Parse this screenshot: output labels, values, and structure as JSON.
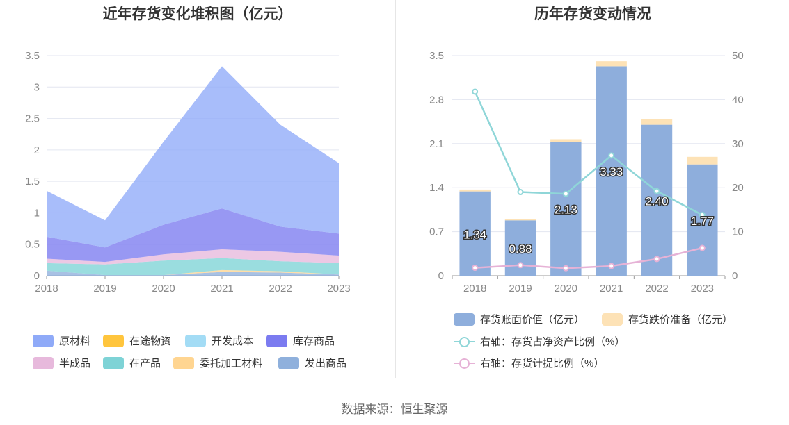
{
  "source_label": "数据来源：恒生聚源",
  "chart_data": [
    {
      "type": "area",
      "title": "近年存货变化堆积图（亿元）",
      "categories": [
        "2018",
        "2019",
        "2020",
        "2021",
        "2022",
        "2023"
      ],
      "y_ticks": [
        "0",
        "0.5",
        "1",
        "1.5",
        "2",
        "2.5",
        "3",
        "3.5"
      ],
      "ylim": [
        0,
        3.5
      ],
      "grid": true,
      "legend_position": "bottom",
      "series": [
        {
          "name": "发出商品",
          "color": "#8fb0dc",
          "values": [
            0.08,
            0.01,
            0.01,
            0.06,
            0.05,
            0.02
          ]
        },
        {
          "name": "委托加工材料",
          "color": "#ffd591",
          "values": [
            0.0,
            0.0,
            0.0,
            0.03,
            0.02,
            0.0
          ]
        },
        {
          "name": "在产品",
          "color": "#7ed3d6",
          "values": [
            0.12,
            0.17,
            0.23,
            0.19,
            0.16,
            0.18
          ]
        },
        {
          "name": "半成品",
          "color": "#e7b9dc",
          "values": [
            0.07,
            0.04,
            0.1,
            0.14,
            0.15,
            0.12
          ]
        },
        {
          "name": "库存商品",
          "color": "#7b7bf0",
          "values": [
            0.35,
            0.23,
            0.47,
            0.65,
            0.4,
            0.35
          ]
        },
        {
          "name": "开发成本",
          "color": "#a3dcf5",
          "values": [
            0,
            0,
            0,
            0,
            0,
            0
          ]
        },
        {
          "name": "在途物资",
          "color": "#ffc53d",
          "values": [
            0,
            0,
            0,
            0,
            0,
            0
          ]
        },
        {
          "name": "原材料",
          "color": "#8faaf8",
          "values": [
            0.73,
            0.43,
            1.32,
            2.26,
            1.62,
            1.12
          ]
        }
      ],
      "legend_order": [
        "原材料",
        "在途物资",
        "开发成本",
        "库存商品",
        "半成品",
        "在产品",
        "委托加工材料",
        "发出商品"
      ]
    },
    {
      "type": "bar",
      "title": "历年存货变动情况",
      "categories": [
        "2018",
        "2019",
        "2020",
        "2021",
        "2022",
        "2023"
      ],
      "y_ticks": [
        "0",
        "0.7",
        "1.4",
        "2.1",
        "2.8",
        "3.5"
      ],
      "ylim": [
        0,
        3.5
      ],
      "y2_ticks": [
        "0",
        "10",
        "20",
        "30",
        "40",
        "50"
      ],
      "y2lim": [
        0,
        50
      ],
      "grid": true,
      "legend_position": "bottom",
      "bar_series": [
        {
          "name": "存货账面价值（亿元）",
          "color": "#8eaedc",
          "values": [
            1.34,
            0.88,
            2.13,
            3.33,
            2.4,
            1.77
          ],
          "labels": [
            "1.34",
            "0.88",
            "2.13",
            "3.33",
            "2.40",
            "1.77"
          ]
        },
        {
          "name": "存货跌价准备（亿元）",
          "color": "#fde2b6",
          "values": [
            0.03,
            0.02,
            0.04,
            0.08,
            0.09,
            0.12
          ]
        }
      ],
      "line_series": [
        {
          "name": "右轴：存货占净资产比例（%）",
          "color": "#8fd6d8",
          "values": [
            41.8,
            19.0,
            18.6,
            27.3,
            19.2,
            13.8
          ]
        },
        {
          "name": "右轴：存货计提比例（%）",
          "color": "#e6b2d6",
          "values": [
            1.8,
            2.4,
            1.7,
            2.2,
            3.8,
            6.3
          ]
        }
      ]
    }
  ]
}
